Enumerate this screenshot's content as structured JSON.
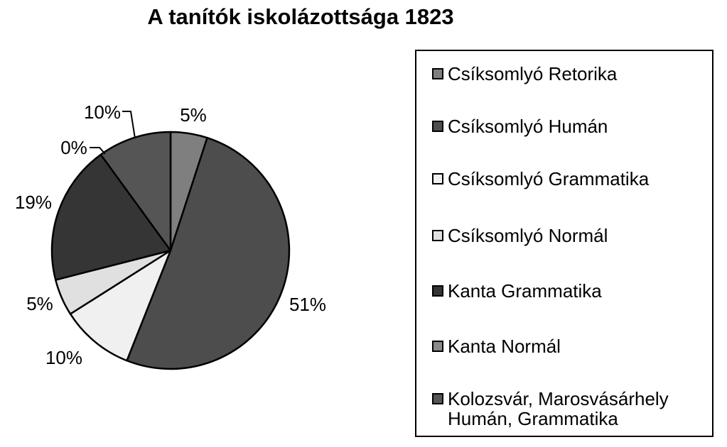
{
  "chart_data": {
    "type": "pie",
    "title": "A tanítók iskolázottsága 1823",
    "legend_position": "right",
    "slices": [
      {
        "name": "Csíksomlyó Retorika",
        "value": 5,
        "label": "5%",
        "color": "#7f7f7f"
      },
      {
        "name": "Csíksomlyó Humán",
        "value": 51,
        "label": "51%",
        "color": "#4d4d4d"
      },
      {
        "name": "Csíksomlyó Grammatika",
        "value": 10,
        "label": "10%",
        "color": "#f0f0f0"
      },
      {
        "name": "Csíksomlyó Normál",
        "value": 5,
        "label": "5%",
        "color": "#e0e0e0"
      },
      {
        "name": "Kanta Grammatika",
        "value": 19,
        "label": "19%",
        "color": "#353535"
      },
      {
        "name": "Kanta Normál",
        "value": 0,
        "label": "0%",
        "color": "#8a8a8a"
      },
      {
        "name": "Kolozsvár, Marosvásárhely Humán, Grammatika",
        "value": 10,
        "label": "10%",
        "color": "#555555"
      }
    ],
    "legend": [
      {
        "line1": "Csíksomlyó Retorika",
        "line2": ""
      },
      {
        "line1": "Csíksomlyó Humán",
        "line2": ""
      },
      {
        "line1": "Csíksomlyó Grammatika",
        "line2": ""
      },
      {
        "line1": "Csíksomlyó Normál",
        "line2": ""
      },
      {
        "line1": "Kanta Grammatika",
        "line2": ""
      },
      {
        "line1": "Kanta Normál",
        "line2": ""
      },
      {
        "line1": "Kolozsvár, Marosvásárhely",
        "line2": "Humán, Grammatika"
      }
    ]
  }
}
